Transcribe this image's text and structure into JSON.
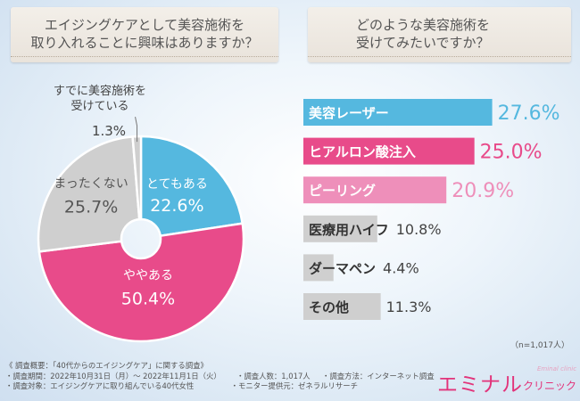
{
  "left_question": "エイジングケアとして美容施術を\n取り入れることに興味はありますか？",
  "right_question": "どのような美容施術を\n受けてみたいですか？",
  "colors": {
    "blue": "#55b8df",
    "pink": "#e84b8a",
    "light_pink": "#ee8fba",
    "gray": "#cfcfcf",
    "text_gray": "#555555"
  },
  "chart_data": [
    {
      "type": "pie",
      "title": "エイジングケアとして美容施術を取り入れることに興味はありますか？",
      "slices": [
        {
          "label": "とてもある",
          "value": 22.6,
          "display": "22.6%"
        },
        {
          "label": "ややある",
          "value": 50.4,
          "display": "50.4%"
        },
        {
          "label": "まったくない",
          "value": 25.7,
          "display": "25.7%"
        },
        {
          "label": "すでに美容施術を\n受けている",
          "value": 1.3,
          "display": "1.3%"
        }
      ]
    },
    {
      "type": "bar",
      "orientation": "horizontal",
      "title": "どのような美容施術を受けてみたいですか？",
      "xlim": [
        0,
        30
      ],
      "categories": [
        "美容レーザー",
        "ヒアルロン酸注入",
        "ピーリング",
        "医療用ハイフ",
        "ダーマペン",
        "その他"
      ],
      "values": [
        27.6,
        25.0,
        20.9,
        10.8,
        4.4,
        11.3
      ],
      "display": [
        "27.6%",
        "25.0%",
        "20.9%",
        "10.8%",
        "4.4%",
        "11.3%"
      ]
    }
  ],
  "sample_note": "（n=1,017人）",
  "footer": {
    "summary": "《 調査概要：「40代からのエイジングケア」に関する調査》",
    "period": "・調査期間：2022年10月31日（月）～ 2022年11月1日（火）",
    "target": "・調査対象：エイジングケアに取り組んでいる40代女性",
    "count": "・調査人数：1,017人",
    "method": "・調査方法：インターネット調査",
    "provider": "・モニター提供元：ゼネラルリサーチ"
  },
  "logo": {
    "main": "エミナル",
    "sub": "クリニック",
    "tiny": "Eminal clinic"
  }
}
